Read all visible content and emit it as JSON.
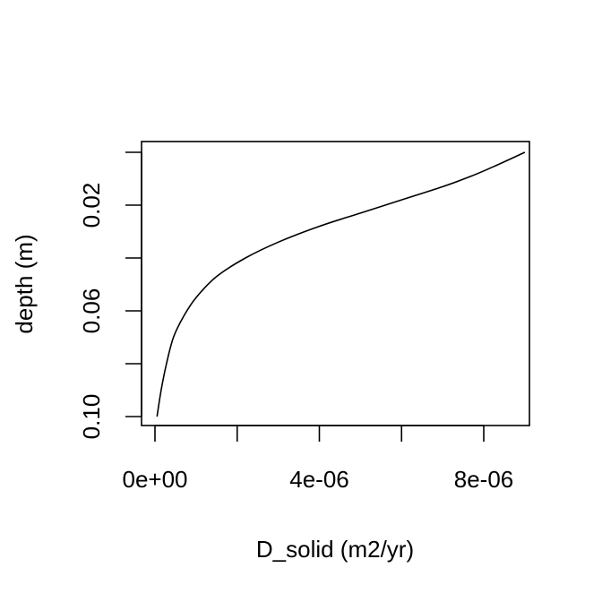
{
  "chart_data": {
    "type": "line",
    "title": "",
    "xlabel": "D_solid (m2/yr)",
    "ylabel": "depth (m)",
    "xlim": [
      0,
      9e-06
    ],
    "ylim": [
      0.1,
      0.0
    ],
    "y_reversed": true,
    "grid": false,
    "legend": "none",
    "x_ticks": [
      {
        "value": 0.0,
        "label": "0e+00"
      },
      {
        "value": 2e-06,
        "label": ""
      },
      {
        "value": 4e-06,
        "label": "4e-06"
      },
      {
        "value": 6e-06,
        "label": ""
      },
      {
        "value": 8e-06,
        "label": "8e-06"
      }
    ],
    "y_ticks": [
      {
        "value": 0.0,
        "label": ""
      },
      {
        "value": 0.02,
        "label": "0.02"
      },
      {
        "value": 0.04,
        "label": ""
      },
      {
        "value": 0.06,
        "label": "0.06"
      },
      {
        "value": 0.08,
        "label": ""
      },
      {
        "value": 0.1,
        "label": "0.10"
      }
    ],
    "series": [
      {
        "color": "#000000",
        "points": [
          {
            "x": 9e-06,
            "y": 0.0
          },
          {
            "x": 8.3e-06,
            "y": 0.005
          },
          {
            "x": 7.7e-06,
            "y": 0.009
          },
          {
            "x": 7e-06,
            "y": 0.013
          },
          {
            "x": 6e-06,
            "y": 0.018
          },
          {
            "x": 5e-06,
            "y": 0.023
          },
          {
            "x": 4e-06,
            "y": 0.028
          },
          {
            "x": 3e-06,
            "y": 0.034
          },
          {
            "x": 2.2e-06,
            "y": 0.04
          },
          {
            "x": 1.5e-06,
            "y": 0.047
          },
          {
            "x": 1e-06,
            "y": 0.055
          },
          {
            "x": 7e-07,
            "y": 0.062
          },
          {
            "x": 4.5e-07,
            "y": 0.07
          },
          {
            "x": 2.8e-07,
            "y": 0.08
          },
          {
            "x": 1.5e-07,
            "y": 0.09
          },
          {
            "x": 5e-08,
            "y": 0.1
          }
        ]
      }
    ]
  }
}
